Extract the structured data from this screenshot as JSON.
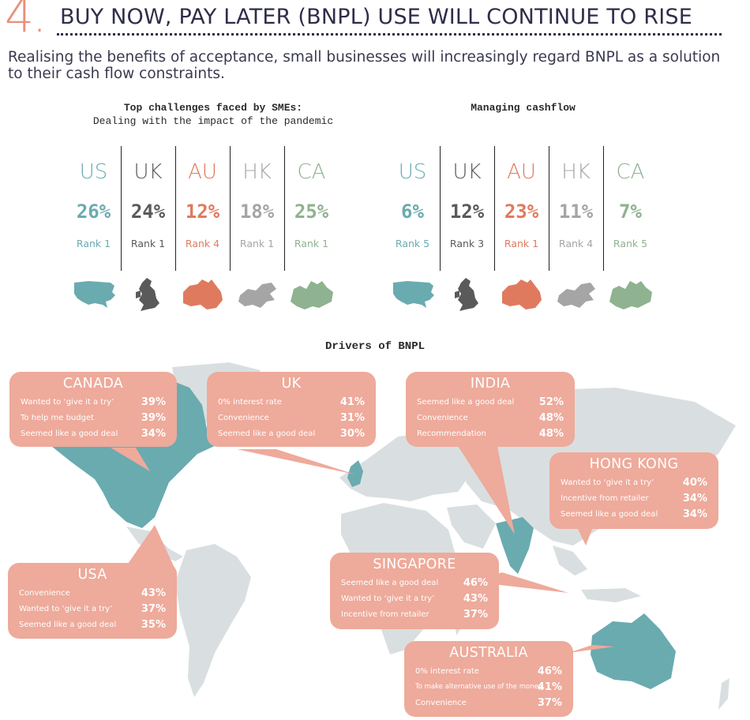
{
  "header": {
    "number": "4.",
    "title": "BUY NOW, PAY LATER (BNPL) USE WILL CONTINUE TO RISE",
    "subtitle": "Realising the benefits of acceptance, small businesses will increasingly regard BNPL as a solution to their cash flow constraints."
  },
  "colors": {
    "US": "#6aabb0",
    "UK": "#5a5a5a",
    "AU": "#e07a5f",
    "HK": "#a5a5a5",
    "CA": "#8fb290",
    "callout": "#eeaa9b",
    "title": "#2e2e4a",
    "accent": "#e8907c"
  },
  "challenges": {
    "heading_line1": "Top challenges faced by SMEs:",
    "heading_line2": "Dealing with the impact of the pandemic",
    "countries": [
      {
        "code": "US",
        "pct": "26%",
        "rank": "Rank 1",
        "icon": "usa-map-icon"
      },
      {
        "code": "UK",
        "pct": "24%",
        "rank": "Rank 1",
        "icon": "uk-map-icon"
      },
      {
        "code": "AU",
        "pct": "12%",
        "rank": "Rank 4",
        "icon": "australia-map-icon"
      },
      {
        "code": "HK",
        "pct": "18%",
        "rank": "Rank 1",
        "icon": "hong-kong-map-icon"
      },
      {
        "code": "CA",
        "pct": "25%",
        "rank": "Rank 1",
        "icon": "canada-map-icon"
      }
    ]
  },
  "cashflow": {
    "heading": "Managing cashflow",
    "countries": [
      {
        "code": "US",
        "pct": "6%",
        "rank": "Rank 5",
        "icon": "usa-map-icon"
      },
      {
        "code": "UK",
        "pct": "12%",
        "rank": "Rank 3",
        "icon": "uk-map-icon"
      },
      {
        "code": "AU",
        "pct": "23%",
        "rank": "Rank 1",
        "icon": "australia-map-icon"
      },
      {
        "code": "HK",
        "pct": "11%",
        "rank": "Rank 4",
        "icon": "hong-kong-map-icon"
      },
      {
        "code": "CA",
        "pct": "7%",
        "rank": "Rank 5",
        "icon": "canada-map-icon"
      }
    ]
  },
  "drivers": {
    "title": "Drivers of BNPL",
    "canada": {
      "name": "CANADA",
      "rows": [
        {
          "label": "Wanted to ‘give it a try’",
          "value": "39%"
        },
        {
          "label": "To help me budget",
          "value": "39%"
        },
        {
          "label": "Seemed like a good deal",
          "value": "34%"
        }
      ]
    },
    "uk": {
      "name": "UK",
      "rows": [
        {
          "label": "0% interest rate",
          "value": "41%"
        },
        {
          "label": "Convenience",
          "value": "31%"
        },
        {
          "label": "Seemed like a good deal",
          "value": "30%"
        }
      ]
    },
    "india": {
      "name": "INDIA",
      "rows": [
        {
          "label": "Seemed like a good deal",
          "value": "52%"
        },
        {
          "label": "Convenience",
          "value": "48%"
        },
        {
          "label": "Recommendation",
          "value": "48%"
        }
      ]
    },
    "hong_kong": {
      "name": "HONG KONG",
      "rows": [
        {
          "label": "Wanted to ‘give it a try’",
          "value": "40%"
        },
        {
          "label": "Incentive from retailer",
          "value": "34%"
        },
        {
          "label": "Seemed like a good deal",
          "value": "34%"
        }
      ]
    },
    "usa": {
      "name": "USA",
      "rows": [
        {
          "label": "Convenience",
          "value": "43%"
        },
        {
          "label": "Wanted to ‘give it a try’",
          "value": "37%"
        },
        {
          "label": "Seemed like a good deal",
          "value": "35%"
        }
      ]
    },
    "singapore": {
      "name": "SINGAPORE",
      "rows": [
        {
          "label": "Seemed like a good deal",
          "value": "46%"
        },
        {
          "label": "Wanted to ‘give it a try’",
          "value": "43%"
        },
        {
          "label": "Incentive from retailer",
          "value": "37%"
        }
      ]
    },
    "australia": {
      "name": "AUSTRALIA",
      "rows": [
        {
          "label": "0% interest rate",
          "value": "46%"
        },
        {
          "label": "To make alternative use of the money",
          "value": "41%"
        },
        {
          "label": "Convenience",
          "value": "37%"
        }
      ]
    }
  }
}
